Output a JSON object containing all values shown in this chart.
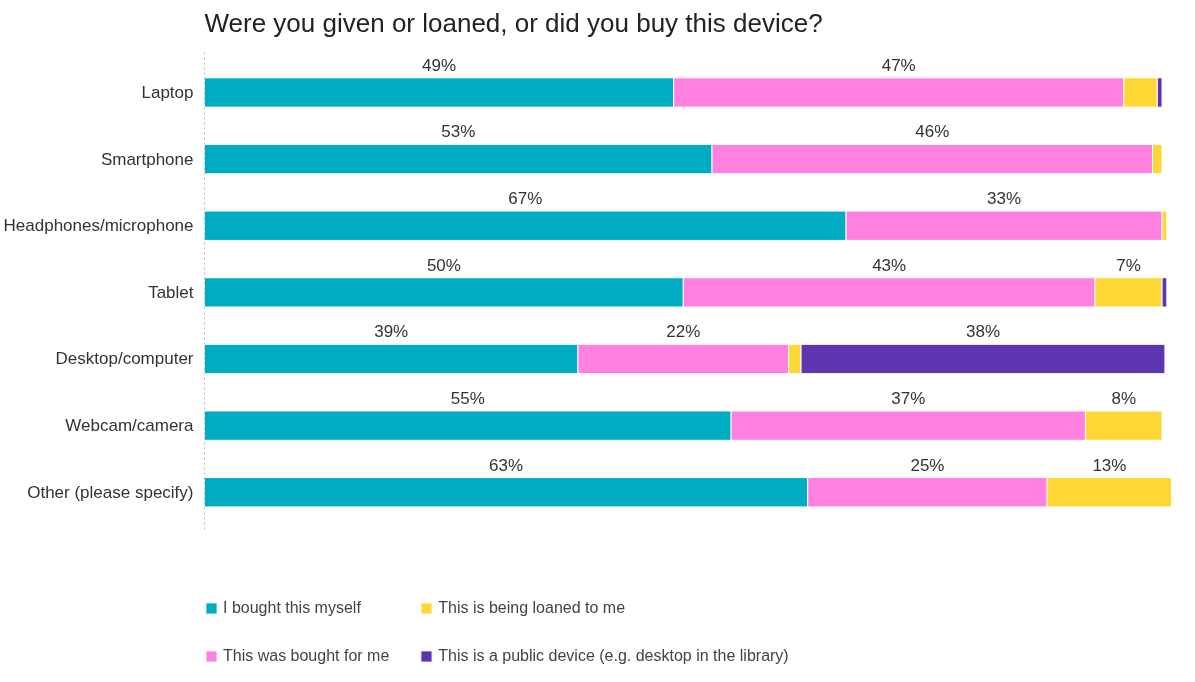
{
  "chart_data": {
    "type": "bar",
    "orientation": "horizontal",
    "stacked": true,
    "title": "Were you given or loaned, or did you buy this device?",
    "categories": [
      "Laptop",
      "Smartphone",
      "Headphones/microphone",
      "Tablet",
      "Desktop/computer",
      "Webcam/camera",
      "Other (please specify)"
    ],
    "series": [
      {
        "name": "I bought this myself",
        "color": "#00acc1",
        "values": [
          49,
          53,
          67,
          50,
          39,
          55,
          63
        ],
        "value_labels": [
          "49%",
          "53%",
          "67%",
          "50%",
          "39%",
          "55%",
          "63%"
        ]
      },
      {
        "name": "This was bought for me",
        "color": "#ff80df",
        "values": [
          47,
          46,
          33,
          43,
          22,
          37,
          25
        ],
        "value_labels": [
          "47%",
          "46%",
          "33%",
          "43%",
          "22%",
          "37%",
          "25%"
        ]
      },
      {
        "name": "This is being loaned to me",
        "color": "#fdd835",
        "values": [
          3.5,
          1,
          0.5,
          7,
          1.3,
          8,
          13
        ],
        "value_labels": [
          null,
          null,
          null,
          "7%",
          null,
          "8%",
          "13%"
        ]
      },
      {
        "name": "This is a public device (e.g. desktop in the library)",
        "color": "#5e35b1",
        "values": [
          0.5,
          null,
          null,
          0.5,
          38,
          null,
          null
        ],
        "value_labels": [
          null,
          null,
          null,
          null,
          "38%",
          null,
          null
        ]
      }
    ],
    "legend": "bottom",
    "grid": false
  }
}
